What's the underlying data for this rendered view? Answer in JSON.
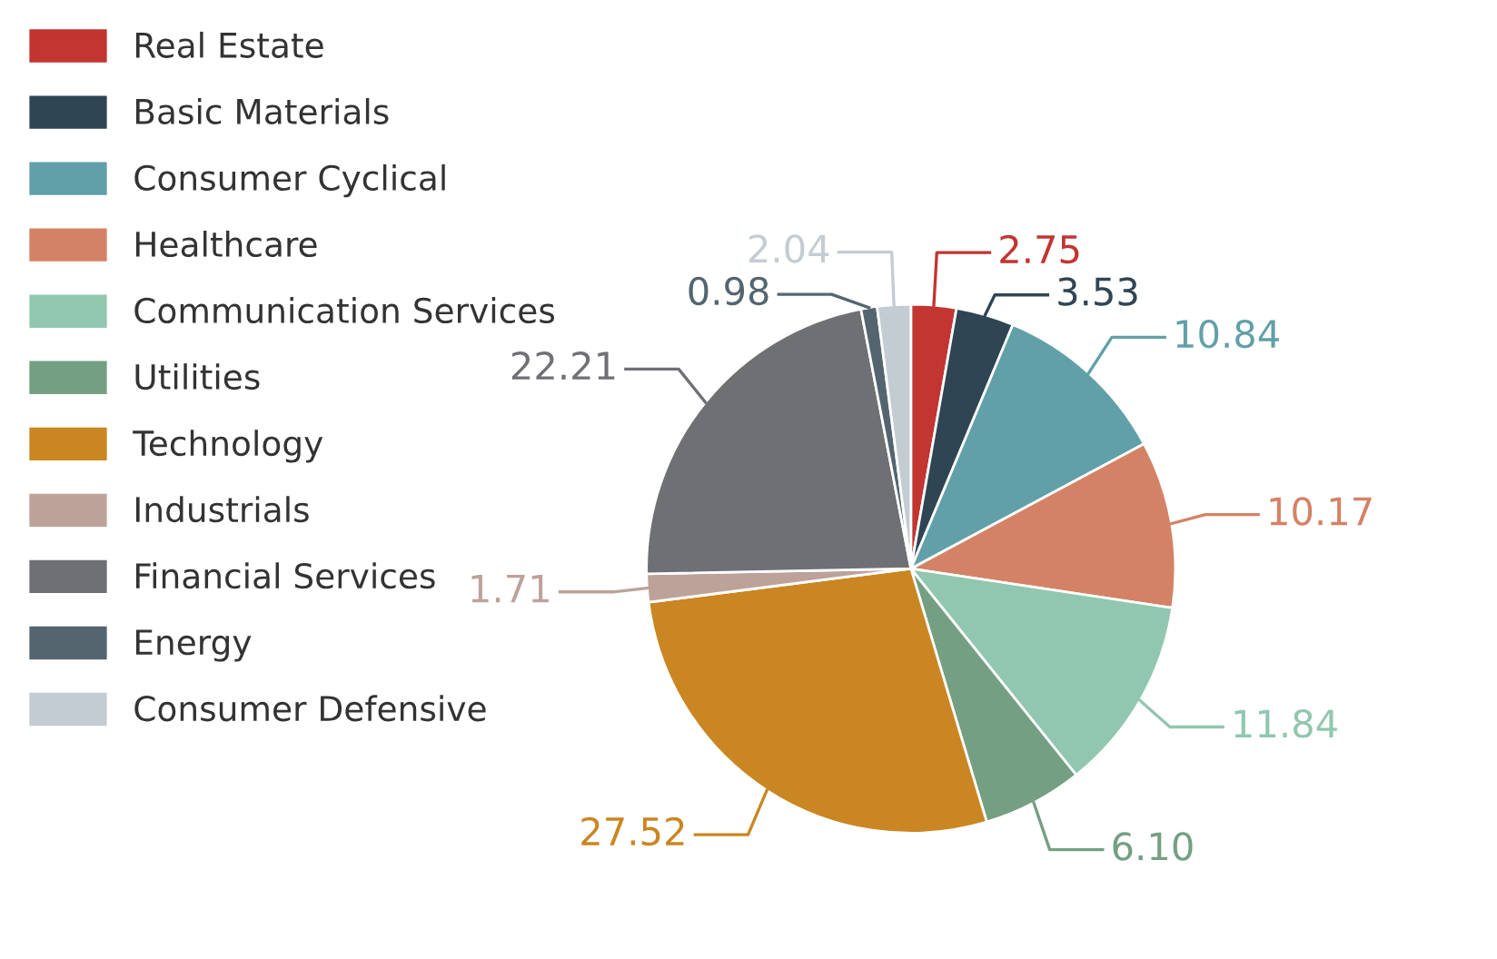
{
  "chart_data": {
    "type": "pie",
    "categories": [
      "Real Estate",
      "Basic Materials",
      "Consumer Cyclical",
      "Healthcare",
      "Communication Services",
      "Utilities",
      "Technology",
      "Industrials",
      "Financial Services",
      "Energy",
      "Consumer Defensive"
    ],
    "values": [
      2.75,
      3.53,
      10.84,
      10.17,
      11.84,
      6.1,
      27.52,
      1.71,
      22.21,
      0.98,
      2.04
    ],
    "value_labels": [
      "2.75",
      "3.53",
      "10.84",
      "10.17",
      "11.84",
      "6.10",
      "27.52",
      "1.71",
      "22.21",
      "0.98",
      "2.04"
    ],
    "colors": [
      "#c23531",
      "#2f4554",
      "#61a0a8",
      "#d48265",
      "#91c7ae",
      "#749f83",
      "#ca8622",
      "#bda29a",
      "#6e7074",
      "#546570",
      "#c4ccd3"
    ],
    "legend": "top left"
  }
}
